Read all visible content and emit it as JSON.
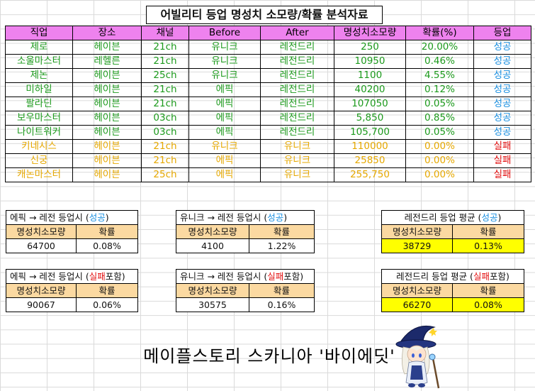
{
  "title": "어빌리티 등업 명성치 소모량/확률 분석자료",
  "main_table": {
    "headers": [
      "직업",
      "장소",
      "채널",
      "Before",
      "After",
      "명성치소모량",
      "확률(%)",
      "등업"
    ],
    "rows": [
      {
        "job": "제로",
        "place": "헤이븐",
        "channel": "21ch",
        "before": "유니크",
        "after": "레전드리",
        "cost": "250",
        "prob": "20.00%",
        "result": "성공",
        "outcome": "success"
      },
      {
        "job": "소울마스터",
        "place": "레헬른",
        "channel": "21ch",
        "before": "유니크",
        "after": "레전드리",
        "cost": "10950",
        "prob": "0.46%",
        "result": "성공",
        "outcome": "success"
      },
      {
        "job": "제논",
        "place": "헤이븐",
        "channel": "25ch",
        "before": "유니크",
        "after": "레전드리",
        "cost": "1100",
        "prob": "4.55%",
        "result": "성공",
        "outcome": "success"
      },
      {
        "job": "미하일",
        "place": "헤이븐",
        "channel": "21ch",
        "before": "에픽",
        "after": "레전드리",
        "cost": "40200",
        "prob": "0.12%",
        "result": "성공",
        "outcome": "success"
      },
      {
        "job": "팔라딘",
        "place": "헤이븐",
        "channel": "21ch",
        "before": "에픽",
        "after": "레전드리",
        "cost": "107050",
        "prob": "0.05%",
        "result": "성공",
        "outcome": "success"
      },
      {
        "job": "보우마스터",
        "place": "헤이븐",
        "channel": "03ch",
        "before": "에픽",
        "after": "레전드리",
        "cost": "5,850",
        "prob": "0.85%",
        "result": "성공",
        "outcome": "success"
      },
      {
        "job": "나이트워커",
        "place": "헤이븐",
        "channel": "03ch",
        "before": "에픽",
        "after": "레전드리",
        "cost": "105,700",
        "prob": "0.05%",
        "result": "성공",
        "outcome": "success"
      },
      {
        "job": "키네시스",
        "place": "헤이븐",
        "channel": "21ch",
        "before": "유니크",
        "after": "유니크",
        "cost": "110000",
        "prob": "0.00%",
        "result": "실패",
        "outcome": "fail"
      },
      {
        "job": "신궁",
        "place": "헤이븐",
        "channel": "21ch",
        "before": "에픽",
        "after": "유니크",
        "cost": "25850",
        "prob": "0.00%",
        "result": "실패",
        "outcome": "fail"
      },
      {
        "job": "캐논마스터",
        "place": "헤이븐",
        "channel": "25ch",
        "before": "에픽",
        "after": "유니크",
        "cost": "255,750",
        "prob": "0.00%",
        "result": "실패",
        "outcome": "fail"
      }
    ]
  },
  "summaries": [
    {
      "caption_pre": "에픽 → 레전 등업시 (",
      "caption_em": "성공",
      "caption_post": ")",
      "kind": "success",
      "col1": "명성치소모량",
      "col2": "확률",
      "v1": "64700",
      "v2": "0.08%"
    },
    {
      "caption_pre": "유니크 → 레전 등업시 (",
      "caption_em": "성공",
      "caption_post": ")",
      "kind": "success",
      "col1": "명성치소모량",
      "col2": "확률",
      "v1": "4100",
      "v2": "1.22%"
    },
    {
      "caption_pre": "레전드리 등업 평균 (",
      "caption_em": "성공",
      "caption_post": ")",
      "kind": "success",
      "col1": "명성치소모량",
      "col2": "확률",
      "v1": "38729",
      "v2": "0.13%"
    },
    {
      "caption_pre": "에픽 → 레전 등업시 (",
      "caption_em": "실패",
      "caption_post": "포함)",
      "kind": "fail",
      "col1": "명성치소모량",
      "col2": "확률",
      "v1": "90067",
      "v2": "0.06%"
    },
    {
      "caption_pre": "유니크 → 레전 등업시 (",
      "caption_em": "실패",
      "caption_post": "포함)",
      "kind": "fail",
      "col1": "명성치소모량",
      "col2": "확률",
      "v1": "30575",
      "v2": "0.16%"
    },
    {
      "caption_pre": "레전드리 등업 평균 (",
      "caption_em": "실패",
      "caption_post": "포함)",
      "kind": "fail",
      "col1": "명성치소모량",
      "col2": "확률",
      "v1": "66270",
      "v2": "0.08%"
    }
  ],
  "footer": "메이플스토리 스카니아 '바이에딧'",
  "colors": {
    "header_bg": "#ee82ee",
    "success_row_text": "#1c9a1c",
    "fail_row_text": "#e6a800",
    "success_result": "#1a8fe0",
    "fail_result": "#e31010",
    "sub_header_bg": "#fbd9a1",
    "highlight_bg": "#ffff00"
  },
  "mascot_icon": "wizard-character-icon"
}
